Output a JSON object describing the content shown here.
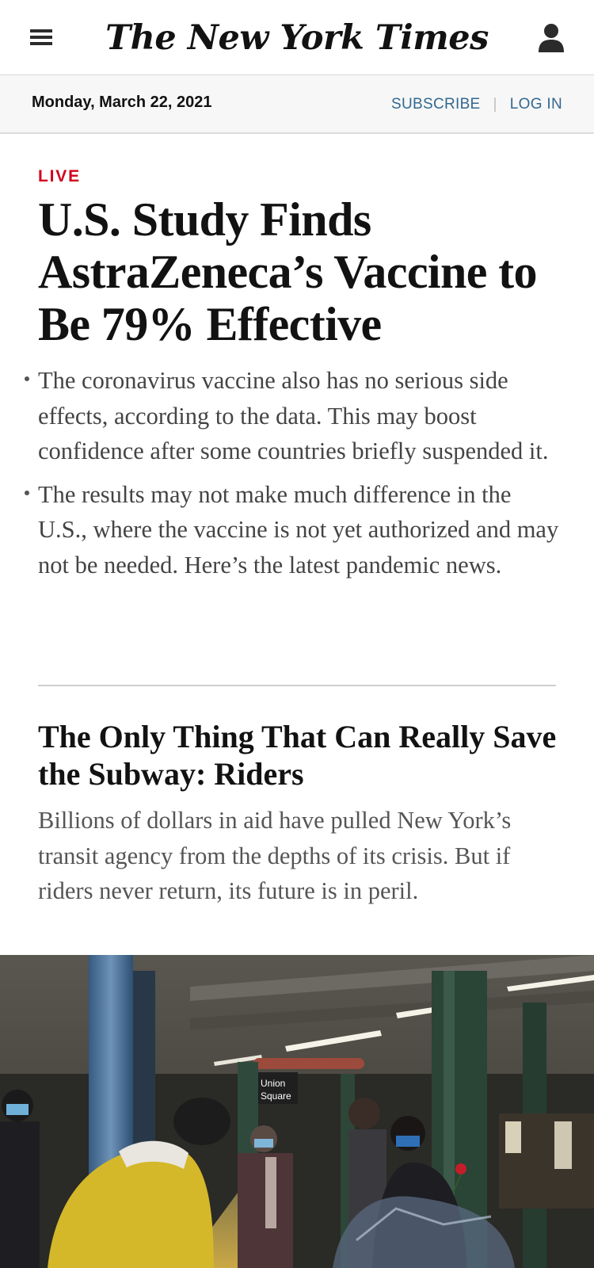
{
  "masthead": {
    "logo": "The New York Times",
    "icons": {
      "menu": "hamburger-menu-icon",
      "account": "user-icon"
    }
  },
  "subbar": {
    "date": "Monday, March 22, 2021",
    "subscribe": "SUBSCRIBE",
    "separator": "|",
    "login": "LOG IN"
  },
  "lead_story": {
    "label": "LIVE",
    "headline": "U.S. Study Finds AstraZeneca’s Vaccine to Be 79% Effective",
    "bullets": [
      "The coronavirus vaccine also has no serious side effects, according to the data. This may boost confidence after some countries briefly suspended it.",
      "The results may not make much difference in the U.S., where the vaccine is not yet authorized and may not be needed. Here’s the latest pandemic news."
    ]
  },
  "second_story": {
    "headline": "The Only Thing That Can Really Save the Subway: Riders",
    "summary": "Billions of dollars in aid have pulled New York’s transit agency from the depths of its crisis. But if riders never return, its future is in peril.",
    "photo_sign": [
      "Union",
      "Square"
    ]
  },
  "colors": {
    "live_red": "#d0021b",
    "link_blue": "#326891",
    "text": "#121212",
    "summary_gray": "#555555"
  }
}
